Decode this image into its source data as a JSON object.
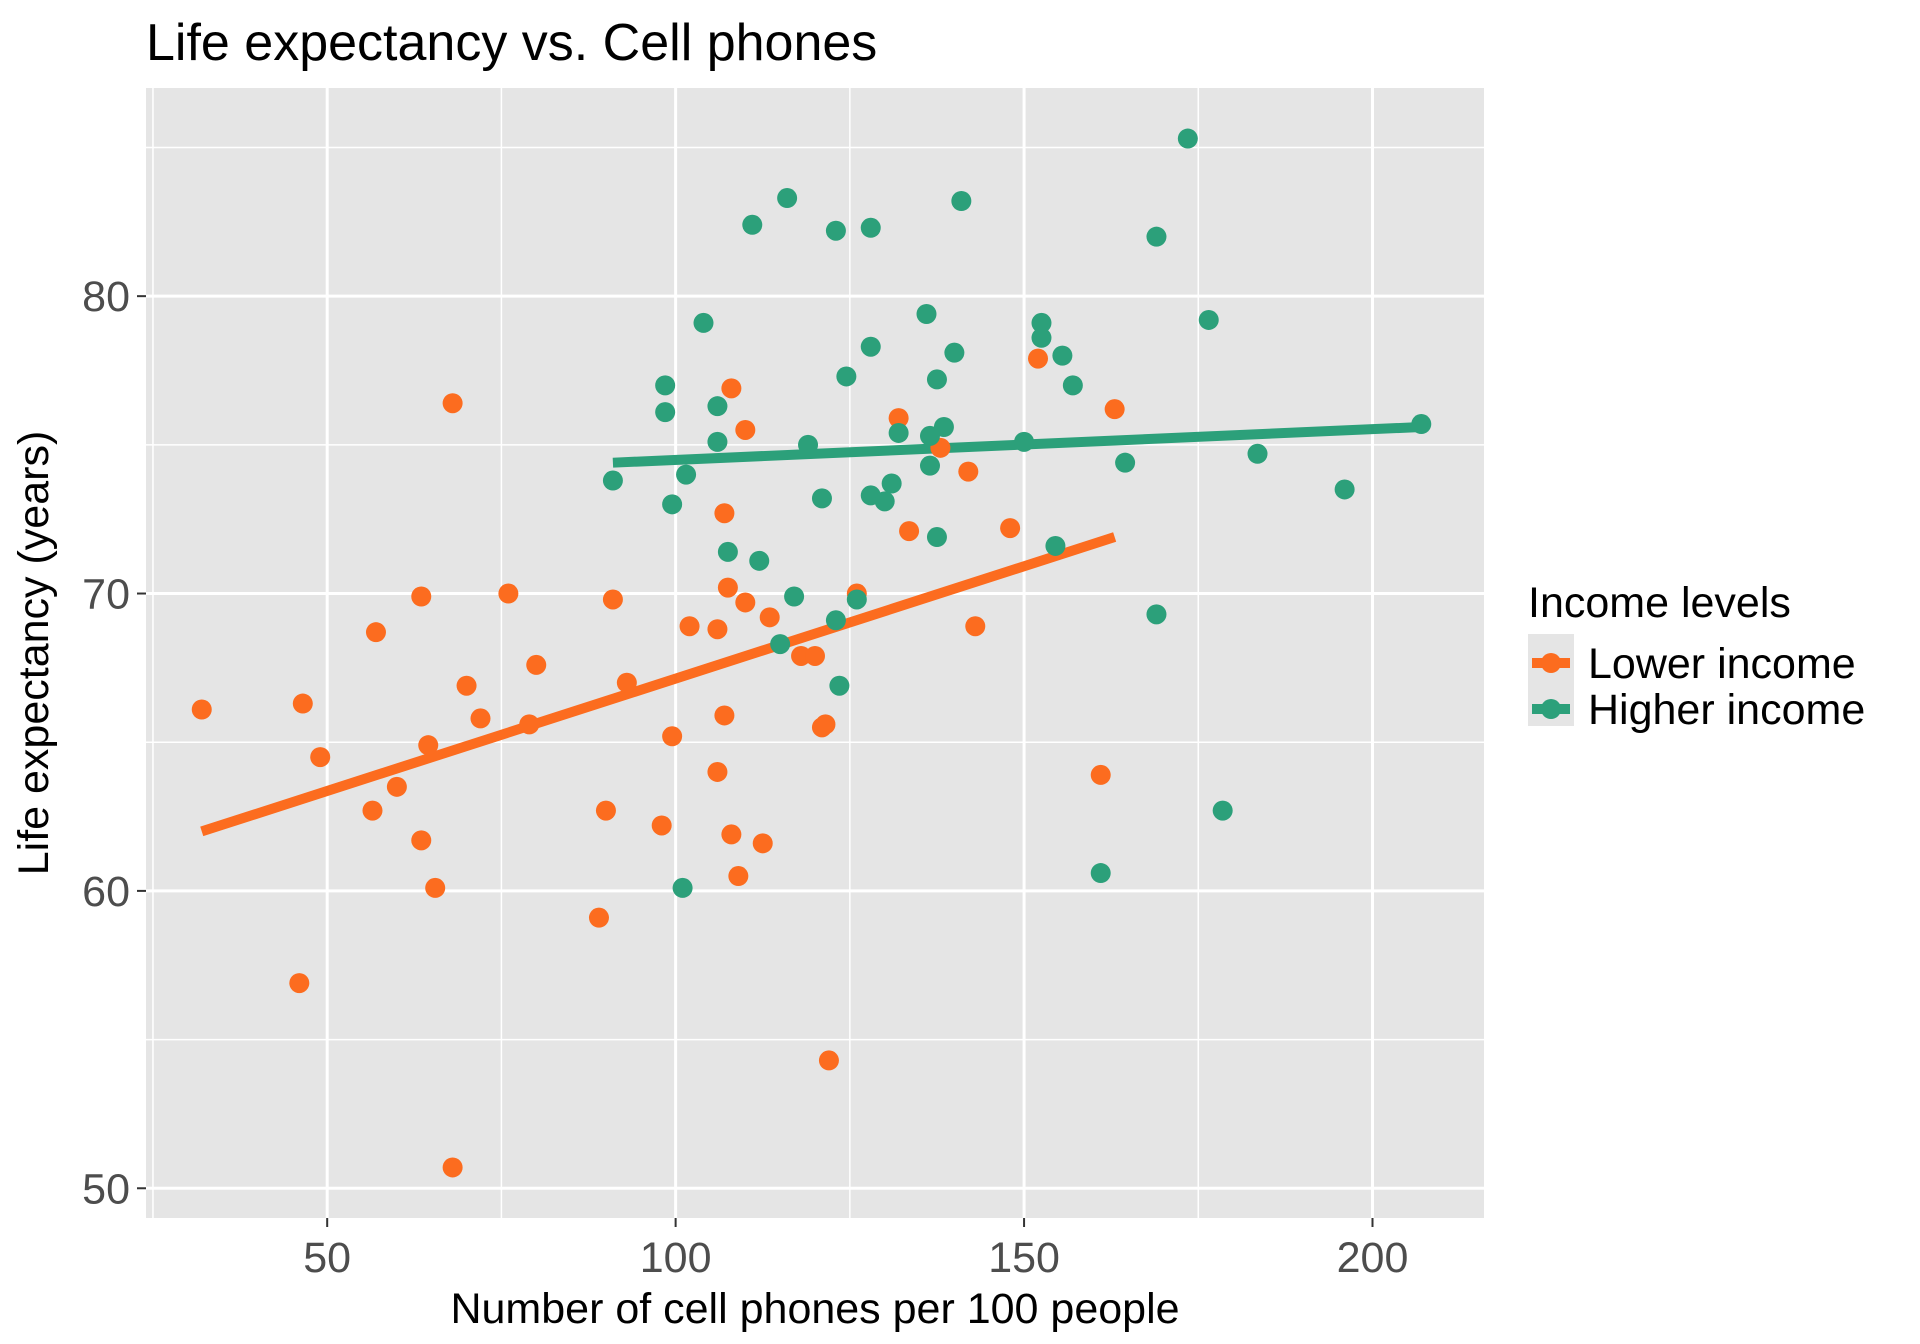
{
  "chart_data": {
    "type": "scatter",
    "title": "Life expectancy vs. Cell phones",
    "xlabel": "Number of cell phones per 100 people",
    "ylabel": "Life expectancy (years)",
    "xlim": [
      24,
      216
    ],
    "ylim": [
      49,
      87
    ],
    "xticks": [
      50,
      100,
      150,
      200
    ],
    "xtick_labels": [
      "50",
      "100",
      "150",
      "200"
    ],
    "yticks": [
      50,
      60,
      70,
      80
    ],
    "ytick_labels": [
      "50",
      "60",
      "70",
      "80"
    ],
    "x_minor": [
      25,
      75,
      125,
      175
    ],
    "y_minor": [
      55,
      65,
      75,
      85
    ],
    "grid": true,
    "background": "#e5e5e5",
    "legend": {
      "title": "Income levels",
      "position": "right"
    },
    "series": [
      {
        "name": "Lower income",
        "color": "#fc6c1f",
        "trend": {
          "x": [
            32,
            163
          ],
          "y": [
            62.0,
            71.9
          ]
        },
        "points": [
          [
            32,
            66.1
          ],
          [
            46,
            56.9
          ],
          [
            46.5,
            66.3
          ],
          [
            49,
            64.5
          ],
          [
            56.5,
            62.7
          ],
          [
            57,
            68.7
          ],
          [
            60,
            63.5
          ],
          [
            63.5,
            61.7
          ],
          [
            63.5,
            69.9
          ],
          [
            64.5,
            64.9
          ],
          [
            65.5,
            60.1
          ],
          [
            68,
            76.4
          ],
          [
            68,
            50.7
          ],
          [
            70,
            66.9
          ],
          [
            72,
            65.8
          ],
          [
            76,
            70.0
          ],
          [
            79,
            65.6
          ],
          [
            80,
            67.6
          ],
          [
            89,
            59.1
          ],
          [
            90,
            62.7
          ],
          [
            91,
            69.8
          ],
          [
            93,
            67.0
          ],
          [
            98,
            62.2
          ],
          [
            99.5,
            65.2
          ],
          [
            102,
            68.9
          ],
          [
            106,
            68.8
          ],
          [
            106,
            64.0
          ],
          [
            107,
            65.9
          ],
          [
            107,
            72.7
          ],
          [
            107.5,
            70.2
          ],
          [
            108,
            61.9
          ],
          [
            108,
            76.9
          ],
          [
            109,
            60.5
          ],
          [
            110,
            75.5
          ],
          [
            110,
            69.7
          ],
          [
            112.5,
            61.6
          ],
          [
            113.5,
            69.2
          ],
          [
            118,
            67.9
          ],
          [
            120,
            67.9
          ],
          [
            121,
            65.5
          ],
          [
            122,
            54.3
          ],
          [
            126,
            70.0
          ],
          [
            132,
            75.9
          ],
          [
            133.5,
            72.1
          ],
          [
            138,
            74.9
          ],
          [
            142,
            74.1
          ],
          [
            148,
            72.2
          ],
          [
            152,
            77.9
          ],
          [
            161,
            63.9
          ],
          [
            163,
            76.2
          ],
          [
            143,
            68.9
          ],
          [
            121.5,
            65.6
          ]
        ]
      },
      {
        "name": "Higher income",
        "color": "#2ca07a",
        "trend": {
          "x": [
            91,
            207
          ],
          "y": [
            74.4,
            75.6
          ]
        },
        "points": [
          [
            91,
            73.8
          ],
          [
            98.5,
            77.0
          ],
          [
            98.5,
            76.1
          ],
          [
            99.5,
            73.0
          ],
          [
            101,
            60.1
          ],
          [
            101.5,
            74.0
          ],
          [
            104,
            79.1
          ],
          [
            106,
            76.3
          ],
          [
            106,
            75.1
          ],
          [
            107.5,
            71.4
          ],
          [
            111,
            82.4
          ],
          [
            112,
            71.1
          ],
          [
            115,
            68.3
          ],
          [
            116,
            83.3
          ],
          [
            117,
            69.9
          ],
          [
            119,
            75.0
          ],
          [
            121,
            73.2
          ],
          [
            123,
            82.2
          ],
          [
            123,
            69.1
          ],
          [
            123.5,
            66.9
          ],
          [
            124.5,
            77.3
          ],
          [
            126,
            69.8
          ],
          [
            128,
            78.3
          ],
          [
            128,
            73.3
          ],
          [
            128,
            82.3
          ],
          [
            130,
            73.1
          ],
          [
            131,
            73.7
          ],
          [
            132,
            75.4
          ],
          [
            136,
            79.4
          ],
          [
            136.5,
            74.3
          ],
          [
            136.5,
            75.3
          ],
          [
            137.5,
            71.9
          ],
          [
            137.5,
            77.2
          ],
          [
            138.5,
            75.6
          ],
          [
            140,
            78.1
          ],
          [
            141,
            83.2
          ],
          [
            150,
            75.1
          ],
          [
            152.5,
            79.1
          ],
          [
            152.5,
            78.6
          ],
          [
            154.5,
            71.6
          ],
          [
            155.5,
            78.0
          ],
          [
            157,
            77.0
          ],
          [
            161,
            60.6
          ],
          [
            164.5,
            74.4
          ],
          [
            169,
            82.0
          ],
          [
            169,
            69.3
          ],
          [
            173.5,
            85.3
          ],
          [
            176.5,
            79.2
          ],
          [
            178.5,
            62.7
          ],
          [
            183.5,
            74.7
          ],
          [
            196,
            73.5
          ],
          [
            207,
            75.7
          ]
        ]
      }
    ]
  }
}
